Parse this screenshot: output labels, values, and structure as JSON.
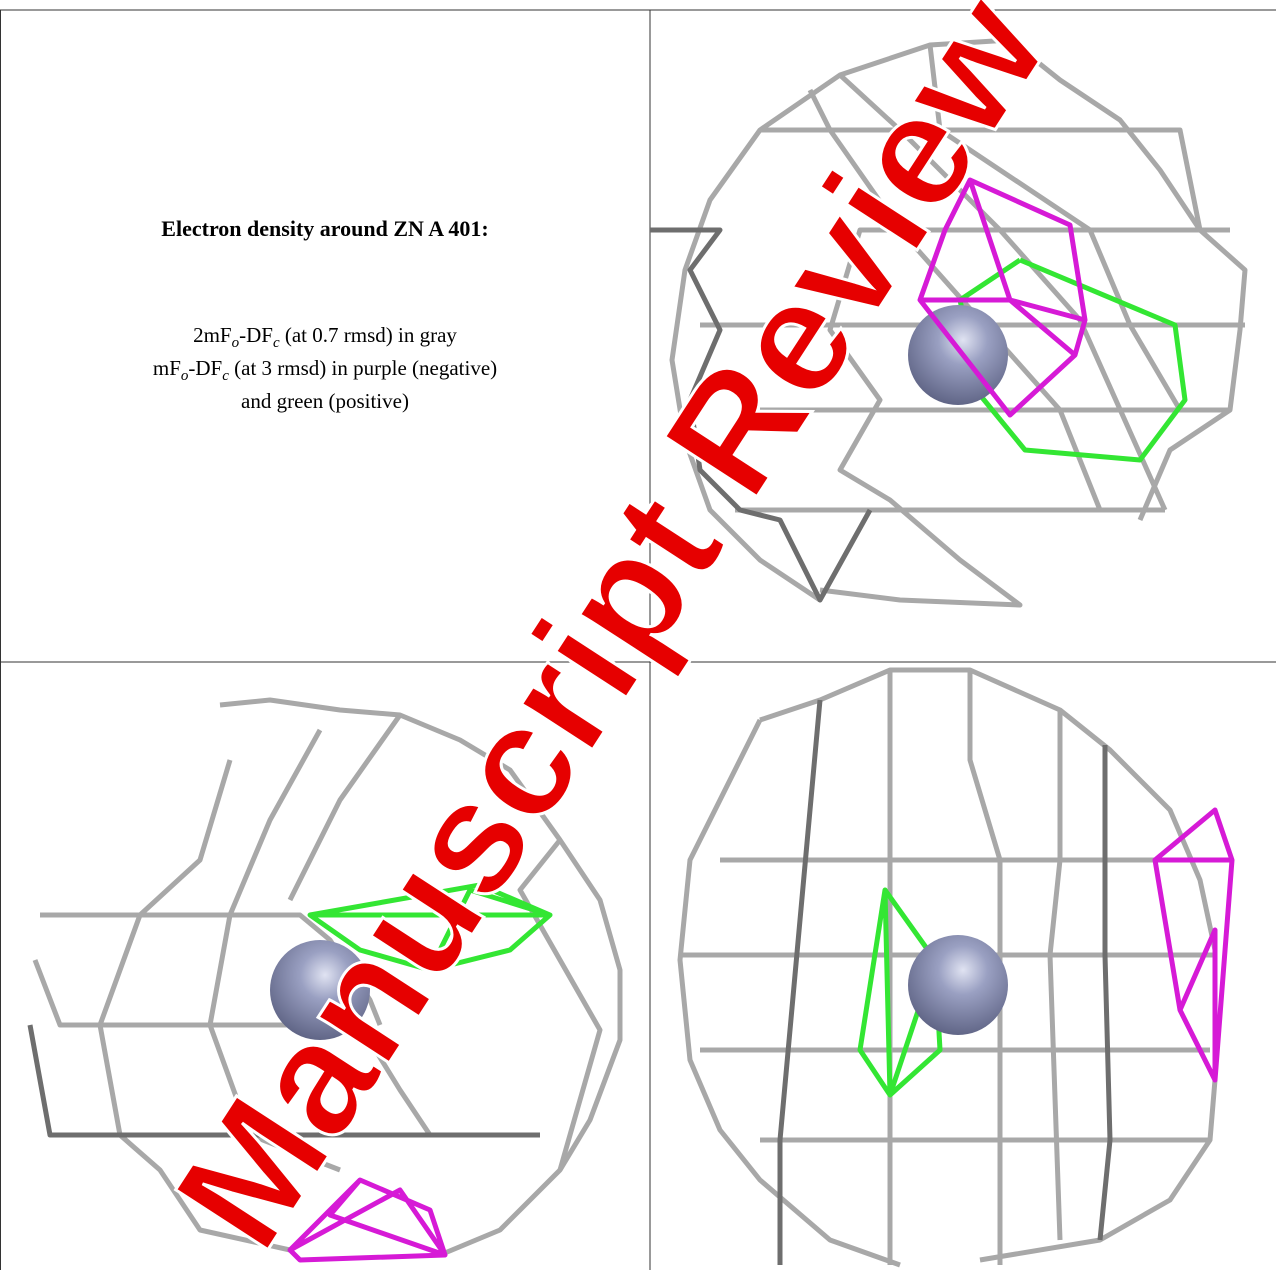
{
  "caption": {
    "title": "Electron density around ZN A 401:",
    "lines": [
      [
        "2mF",
        "o",
        "-DF",
        "c",
        " (at 0.7 rmsd) in gray"
      ],
      [
        "mF",
        "o",
        "-DF",
        "c",
        " (at 3 rmsd) in purple (negative)"
      ],
      [
        "and green (positive)"
      ]
    ]
  },
  "watermark": "Manuscript Review"
}
